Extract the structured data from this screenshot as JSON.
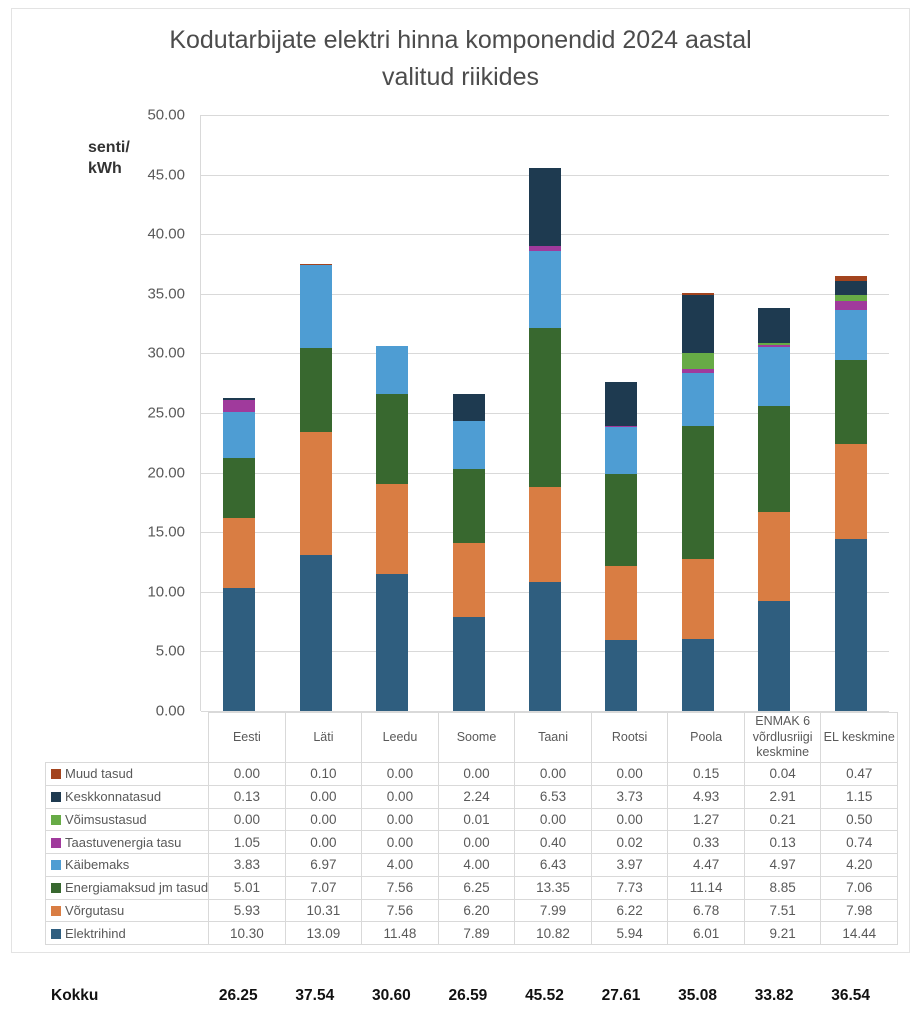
{
  "title": {
    "line1": "Kodutarbijate elektri hinna komponendid 2024 aastal",
    "line2": "valitud riikides"
  },
  "y_axis": {
    "unit_line1": "senti/",
    "unit_line2": "kWh",
    "min": 0,
    "max": 50,
    "step": 5
  },
  "chart_data": {
    "type": "bar",
    "stacked": true,
    "title": "Kodutarbijate elektri hinna komponendid 2024 aastal valitud riikides",
    "ylabel": "senti/kWh",
    "ylim": [
      0,
      50
    ],
    "ytick_step": 5,
    "grid": true,
    "grid_color": "#d9d9d9",
    "legend_position": "table-left",
    "categories": [
      "Eesti",
      "Läti",
      "Leedu",
      "Soome",
      "Taani",
      "Rootsi",
      "Poola",
      "ENMAK 6 võrdlusriigi keskmine",
      "EL keskmine"
    ],
    "series": [
      {
        "name": "Muud tasud",
        "color": "#a3441e",
        "values": [
          0.0,
          0.1,
          0.0,
          0.0,
          0.0,
          0.0,
          0.15,
          0.04,
          0.47
        ]
      },
      {
        "name": "Keskkonnatasud",
        "color": "#1e3a50",
        "values": [
          0.13,
          0.0,
          0.0,
          2.24,
          6.53,
          3.73,
          4.93,
          2.91,
          1.15
        ]
      },
      {
        "name": "Võimsustasud",
        "color": "#67ab46",
        "values": [
          0.0,
          0.0,
          0.0,
          0.01,
          0.0,
          0.0,
          1.27,
          0.21,
          0.5
        ]
      },
      {
        "name": "Taastuvenergia tasu",
        "color": "#a03a9c",
        "values": [
          1.05,
          0.0,
          0.0,
          0.0,
          0.4,
          0.02,
          0.33,
          0.13,
          0.74
        ]
      },
      {
        "name": "Käibemaks",
        "color": "#4e9dd3",
        "values": [
          3.83,
          6.97,
          4.0,
          4.0,
          6.43,
          3.97,
          4.47,
          4.97,
          4.2
        ]
      },
      {
        "name": "Energiamaksud jm tasud",
        "color": "#38682f",
        "values": [
          5.01,
          7.07,
          7.56,
          6.25,
          13.35,
          7.73,
          11.14,
          8.85,
          7.06
        ]
      },
      {
        "name": "Võrgutasu",
        "color": "#d97d43",
        "values": [
          5.93,
          10.31,
          7.56,
          6.2,
          7.99,
          6.22,
          6.78,
          7.51,
          7.98
        ]
      },
      {
        "name": "Elektrihind",
        "color": "#2f5e7f",
        "values": [
          10.3,
          13.09,
          11.48,
          7.89,
          10.82,
          5.94,
          6.01,
          9.21,
          14.44
        ]
      }
    ],
    "totals": {
      "label": "Kokku",
      "values": [
        "26.25",
        "37.54",
        "30.60",
        "26.59",
        "45.52",
        "27.61",
        "35.08",
        "33.82",
        "36.54"
      ]
    }
  }
}
